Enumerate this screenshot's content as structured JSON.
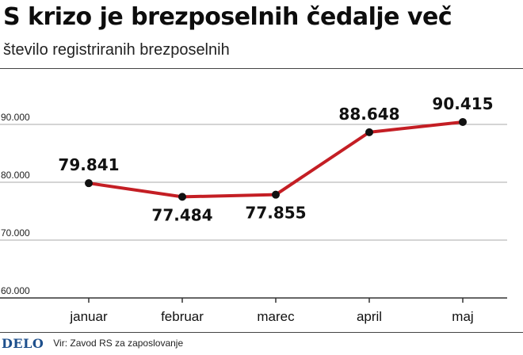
{
  "title": "S krizo je brezposelnih čedalje več",
  "subtitle": "število registriranih brezposelnih",
  "footer": {
    "logo": "DELO",
    "source": "Vir: Zavod RS za zaposlovanje"
  },
  "colors": {
    "line": "#c41e24",
    "marker": "#111111",
    "grid": "#aaaaaa",
    "axis": "#333333"
  },
  "chart_data": {
    "type": "line",
    "categories": [
      "januar",
      "februar",
      "marec",
      "april",
      "maj"
    ],
    "values": [
      79841,
      77484,
      77855,
      88648,
      90415
    ],
    "data_labels": [
      "79.841",
      "77.484",
      "77.855",
      "88.648",
      "90.415"
    ],
    "y_ticks": [
      60000,
      70000,
      80000,
      90000
    ],
    "y_tick_labels": [
      "60.000",
      "70.000",
      "80.000",
      "90.000"
    ],
    "ylim": [
      60000,
      100000
    ],
    "grid": true,
    "legend": "none"
  }
}
